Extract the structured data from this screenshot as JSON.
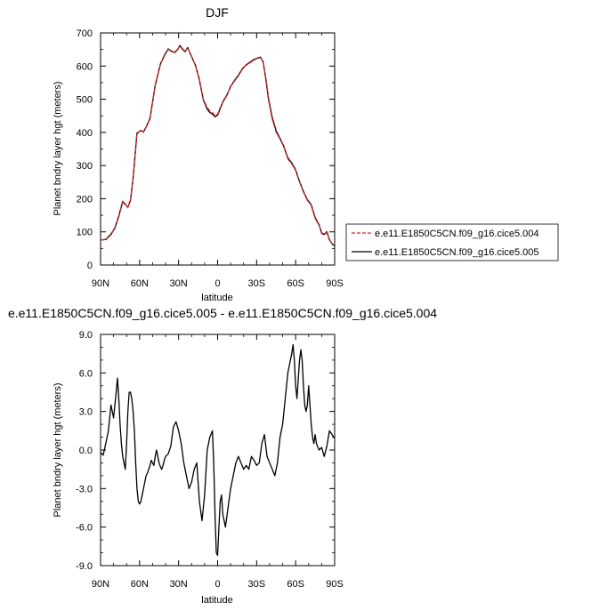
{
  "chart_data": [
    {
      "type": "line",
      "title": "DJF",
      "xlabel": "latitude",
      "ylabel": "Planet bndry layer hgt (meters)",
      "xlim": [
        90,
        -90
      ],
      "ylim": [
        0,
        700
      ],
      "x_ticks": [
        "90N",
        "60N",
        "30N",
        "0",
        "30S",
        "60S",
        "90S"
      ],
      "y_ticks": [
        "0",
        "100",
        "200",
        "300",
        "400",
        "500",
        "600",
        "700"
      ],
      "legend_position": "right",
      "series": [
        {
          "name": "e.e11.E1850C5CN.f09_g16.cice5.004",
          "color": "#d62728",
          "dashed": true,
          "x": [
            90,
            86,
            82,
            79,
            76,
            73,
            71,
            69,
            67,
            65,
            62,
            59,
            57,
            55,
            52,
            48,
            44,
            41,
            38,
            35,
            33,
            31,
            29,
            27,
            25,
            23,
            20,
            17,
            14,
            11,
            8,
            6,
            4,
            2,
            0,
            -2,
            -4,
            -7,
            -10,
            -13,
            -16,
            -19,
            -22,
            -25,
            -28,
            -30,
            -33,
            -35,
            -37,
            -39,
            -42,
            -45,
            -48,
            -51,
            -54,
            -57,
            -60,
            -63,
            -66,
            -69,
            -72,
            -75,
            -78,
            -80,
            -82,
            -84,
            -86,
            -88,
            -90
          ],
          "y": [
            75,
            78,
            95,
            110,
            145,
            190,
            185,
            172,
            195,
            260,
            395,
            408,
            400,
            415,
            440,
            540,
            605,
            630,
            650,
            645,
            640,
            650,
            660,
            650,
            645,
            655,
            630,
            600,
            560,
            500,
            475,
            465,
            460,
            450,
            455,
            475,
            490,
            510,
            540,
            555,
            570,
            590,
            605,
            610,
            618,
            622,
            625,
            615,
            560,
            500,
            440,
            400,
            380,
            355,
            320,
            305,
            285,
            250,
            220,
            195,
            180,
            140,
            120,
            95,
            90,
            100,
            75,
            65,
            60
          ]
        },
        {
          "name": "e.e11.E1850C5CN.f09_g16.cice5.005",
          "color": "#000000",
          "dashed": false,
          "x": [
            90,
            86,
            82,
            79,
            76,
            73,
            71,
            69,
            67,
            65,
            62,
            59,
            57,
            55,
            52,
            48,
            44,
            41,
            38,
            35,
            33,
            31,
            29,
            27,
            25,
            23,
            20,
            17,
            14,
            11,
            8,
            6,
            4,
            2,
            0,
            -2,
            -4,
            -7,
            -10,
            -13,
            -16,
            -19,
            -22,
            -25,
            -28,
            -30,
            -33,
            -35,
            -37,
            -39,
            -42,
            -45,
            -48,
            -51,
            -54,
            -57,
            -60,
            -63,
            -66,
            -69,
            -72,
            -75,
            -78,
            -80,
            -82,
            -84,
            -86,
            -88,
            -90
          ],
          "y": [
            75,
            77,
            92,
            112,
            148,
            192,
            183,
            174,
            196,
            262,
            398,
            405,
            402,
            416,
            442,
            542,
            606,
            632,
            652,
            643,
            642,
            648,
            662,
            652,
            643,
            656,
            628,
            602,
            558,
            498,
            470,
            460,
            455,
            447,
            452,
            472,
            492,
            512,
            538,
            557,
            572,
            592,
            603,
            612,
            620,
            623,
            627,
            612,
            565,
            505,
            445,
            405,
            382,
            357,
            323,
            308,
            287,
            252,
            222,
            197,
            182,
            143,
            122,
            97,
            92,
            101,
            76,
            64,
            58
          ]
        }
      ]
    },
    {
      "type": "line",
      "title": "e.e11.E1850C5CN.f09_g16.cice5.005 - e.e11.E1850C5CN.f09_g16.cice5.004",
      "xlabel": "latitude",
      "ylabel": "Planet bndry layer hgt (meters)",
      "xlim": [
        90,
        -90
      ],
      "ylim": [
        -9,
        9
      ],
      "x_ticks": [
        "90N",
        "60N",
        "30N",
        "0",
        "30S",
        "60S",
        "90S"
      ],
      "y_ticks": [
        "9.0",
        "6.0",
        "3.0",
        "0.0",
        "-3.0",
        "-6.0",
        "-9.0"
      ],
      "series": [
        {
          "color": "#000000",
          "x": [
            90,
            88,
            86,
            84,
            82,
            80,
            78,
            77,
            76,
            75,
            74,
            73,
            72,
            71,
            70,
            69,
            68,
            67,
            66,
            65,
            64,
            63,
            62,
            61,
            60,
            59,
            58,
            57,
            56,
            55,
            54,
            53,
            52,
            51,
            50,
            49,
            48,
            47,
            46,
            45,
            44,
            43,
            42,
            41,
            40,
            38,
            36,
            34,
            32,
            30,
            28,
            26,
            24,
            22,
            20,
            18,
            16,
            14,
            12,
            10,
            8,
            6,
            4,
            3,
            2,
            1,
            0,
            -1,
            -2,
            -3,
            -4,
            -5,
            -6,
            -8,
            -10,
            -12,
            -14,
            -16,
            -18,
            -20,
            -22,
            -24,
            -26,
            -28,
            -30,
            -32,
            -34,
            -36,
            -38,
            -40,
            -42,
            -44,
            -46,
            -48,
            -50,
            -52,
            -54,
            -56,
            -57,
            -58,
            -59,
            -60,
            -61,
            -62,
            -63,
            -64,
            -65,
            -66,
            -67,
            -68,
            -69,
            -70,
            -71,
            -72,
            -73,
            -74,
            -75,
            -76,
            -78,
            -80,
            -82,
            -84,
            -86,
            -88,
            -90
          ],
          "y": [
            -0.2,
            -0.4,
            0.5,
            1.5,
            3.5,
            2.5,
            4.5,
            5.6,
            4.0,
            2.0,
            0.5,
            -0.5,
            -1.0,
            -1.5,
            0.5,
            3.0,
            4.5,
            4.5,
            4.0,
            3.0,
            1.5,
            -1.0,
            -3.0,
            -4.0,
            -4.2,
            -4.0,
            -3.5,
            -3.0,
            -2.5,
            -2.0,
            -1.8,
            -1.5,
            -1.2,
            -0.8,
            -1.0,
            -1.2,
            -0.5,
            0.0,
            -0.5,
            -1.0,
            -1.3,
            -1.5,
            -1.2,
            -0.8,
            -0.5,
            -0.3,
            0.3,
            1.8,
            2.2,
            1.5,
            0.5,
            -1.0,
            -2.0,
            -3.0,
            -2.5,
            -1.5,
            -1.0,
            -4.0,
            -5.5,
            -3.5,
            0.0,
            1.0,
            1.5,
            -1.0,
            -5.0,
            -8.0,
            -8.2,
            -6.0,
            -4.0,
            -3.5,
            -5.0,
            -5.5,
            -6.0,
            -4.5,
            -3.0,
            -2.0,
            -1.0,
            -0.5,
            -1.0,
            -1.5,
            -1.2,
            -1.5,
            -0.5,
            -0.8,
            -1.2,
            -1.0,
            0.5,
            1.2,
            -0.5,
            -1.0,
            -1.5,
            -2.0,
            -1.0,
            1.0,
            2.0,
            4.0,
            6.0,
            7.0,
            7.5,
            8.2,
            7.0,
            5.0,
            4.0,
            5.5,
            7.0,
            7.8,
            7.0,
            5.0,
            3.5,
            3.0,
            3.5,
            5.0,
            3.5,
            2.0,
            1.0,
            0.5,
            1.2,
            0.5,
            0.0,
            0.2,
            -0.5,
            0.3,
            1.5,
            1.2,
            0.9
          ]
        }
      ]
    }
  ]
}
